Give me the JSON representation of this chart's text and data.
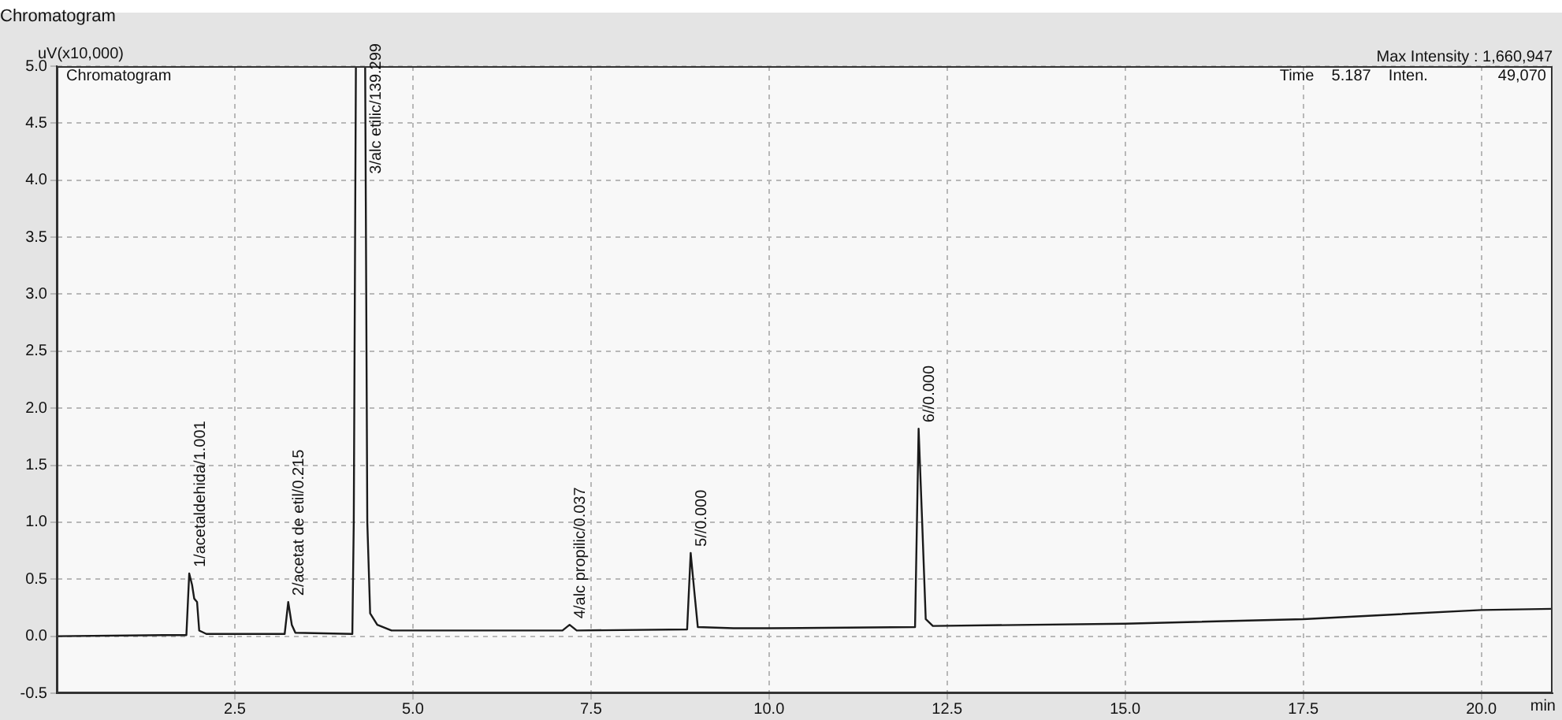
{
  "chart_data": {
    "type": "line",
    "title": "Chromatogram",
    "ylabel": "uV(x10,000)",
    "xlabel": "min",
    "x": [
      0,
      1.5,
      1.82,
      1.86,
      1.9,
      1.93,
      1.97,
      2.0,
      2.1,
      3.2,
      3.25,
      3.3,
      3.35,
      4.15,
      4.17,
      4.2,
      4.33,
      4.36,
      4.4,
      4.5,
      4.7,
      5,
      7.1,
      7.2,
      7.3,
      8.85,
      8.9,
      8.95,
      9.0,
      9.5,
      10,
      12.05,
      12.1,
      12.15,
      12.2,
      12.3,
      15,
      17.5,
      20,
      21
    ],
    "series": [
      {
        "color": "#1a1a1a",
        "values": [
          0,
          0.01,
          0.01,
          0.55,
          0.45,
          0.33,
          0.3,
          0.05,
          0.02,
          0.02,
          0.3,
          0.1,
          0.03,
          0.02,
          1.0,
          5.0,
          5.0,
          1.0,
          0.2,
          0.1,
          0.05,
          0.05,
          0.05,
          0.1,
          0.05,
          0.06,
          0.73,
          0.4,
          0.08,
          0.07,
          0.07,
          0.08,
          1.82,
          1.0,
          0.15,
          0.09,
          0.11,
          0.15,
          0.23,
          0.24
        ]
      }
    ],
    "xlim": [
      0,
      21
    ],
    "ylim": [
      -0.5,
      5.0
    ],
    "xticks": [
      {
        "value": 2.5,
        "label": "2.5"
      },
      {
        "value": 5,
        "label": "5.0"
      },
      {
        "value": 7.5,
        "label": "7.5"
      },
      {
        "value": 10,
        "label": "10.0"
      },
      {
        "value": 12.5,
        "label": "12.5"
      },
      {
        "value": 15,
        "label": "15.0"
      },
      {
        "value": 17.5,
        "label": "17.5"
      },
      {
        "value": 20,
        "label": "20.0"
      }
    ],
    "yticks": [
      {
        "value": -0.5,
        "label": "-0.5"
      },
      {
        "value": 0,
        "label": "0.0"
      },
      {
        "value": 0.5,
        "label": "0.5"
      },
      {
        "value": 1,
        "label": "1.0"
      },
      {
        "value": 1.5,
        "label": "1.5"
      },
      {
        "value": 2,
        "label": "2.0"
      },
      {
        "value": 2.5,
        "label": "2.5"
      },
      {
        "value": 3,
        "label": "3.0"
      },
      {
        "value": 3.5,
        "label": "3.5"
      },
      {
        "value": 4,
        "label": "4.0"
      },
      {
        "value": 4.5,
        "label": "4.5"
      },
      {
        "value": 5,
        "label": "5.0"
      }
    ],
    "grid": true,
    "legend": false,
    "marker": "none",
    "line_style": "solid",
    "annotations": [
      "Chromatogram",
      "Max Intensity : 1,660,947",
      "Time    5.187    Inten.                49,070",
      {
        "text": "1/acetaldehida/1.001",
        "x": 1.86,
        "y": 0.55
      },
      {
        "text": "2/acetat de etil/0.215",
        "x": 3.25,
        "y": 0.3
      },
      {
        "text": "3/alc etilic/139.299",
        "x": 4.33,
        "y": 4.0
      },
      {
        "text": "4/alc propilic/0.037",
        "x": 7.2,
        "y": 0.1
      },
      {
        "text": "5//0.000",
        "x": 8.9,
        "y": 0.73
      },
      {
        "text": "6//0.000",
        "x": 12.1,
        "y": 1.82
      }
    ]
  }
}
